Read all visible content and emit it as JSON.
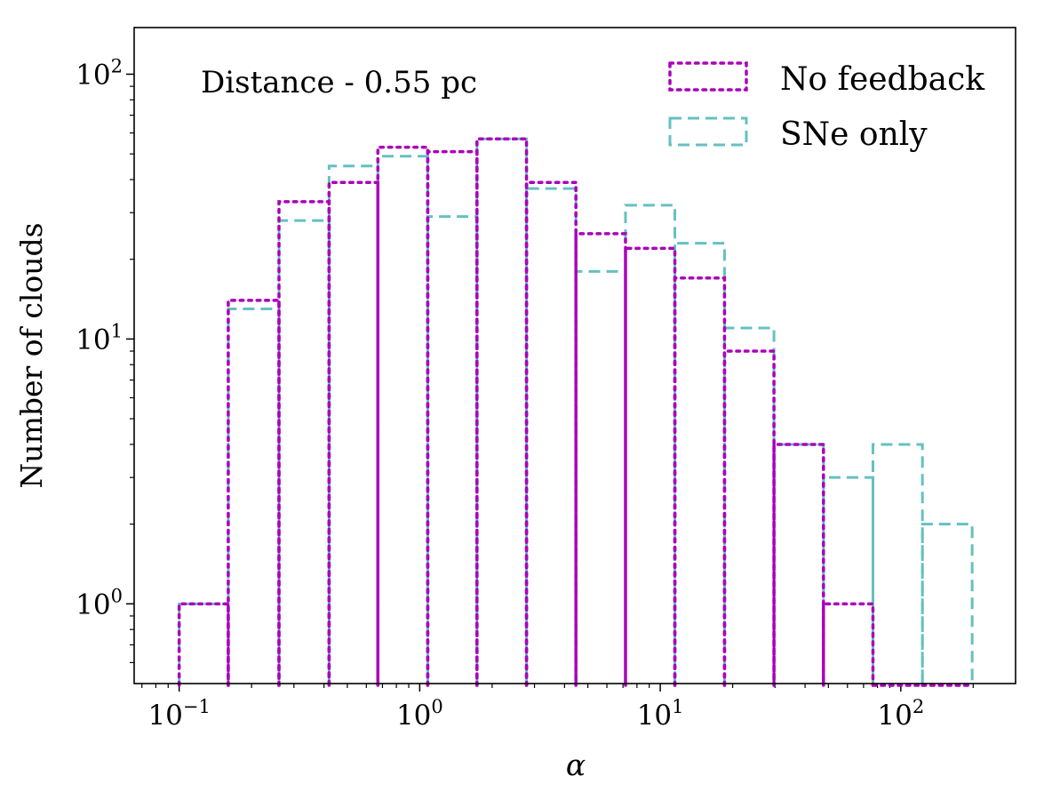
{
  "chart_data": {
    "type": "histogram",
    "annotation": "Distance - 0.55 pc",
    "xlabel": "α",
    "ylabel": "Number of clouds",
    "xscale": "log",
    "yscale": "log",
    "xlim": [
      0.065,
      300
    ],
    "ylim": [
      0.5,
      150
    ],
    "x_ticks": [
      {
        "base": "10",
        "exp": "−1",
        "value": 0.1
      },
      {
        "base": "10",
        "exp": "0",
        "value": 1
      },
      {
        "base": "10",
        "exp": "1",
        "value": 10
      },
      {
        "base": "10",
        "exp": "2",
        "value": 100
      }
    ],
    "y_ticks": [
      {
        "base": "10",
        "exp": "0",
        "value": 1
      },
      {
        "base": "10",
        "exp": "1",
        "value": 10
      },
      {
        "base": "10",
        "exp": "2",
        "value": 100
      }
    ],
    "bin_edges": [
      0.1,
      0.16,
      0.26,
      0.42,
      0.67,
      1.08,
      1.73,
      2.78,
      4.46,
      7.17,
      11.5,
      18.5,
      29.7,
      47.7,
      76.6,
      123,
      198
    ],
    "series": [
      {
        "name": "No feedback",
        "color": "#aa00bb",
        "style": "dotted",
        "counts": [
          1,
          14,
          33,
          39,
          53,
          51,
          57,
          39,
          25,
          22,
          17,
          9,
          4,
          1,
          0,
          0
        ]
      },
      {
        "name": "SNe only",
        "color": "#66c0c0",
        "style": "dashed",
        "counts": [
          1,
          13,
          28,
          45,
          49,
          29,
          57,
          37,
          18,
          32,
          23,
          11,
          4,
          3,
          4,
          2
        ]
      }
    ],
    "legend_position": "top-right"
  }
}
